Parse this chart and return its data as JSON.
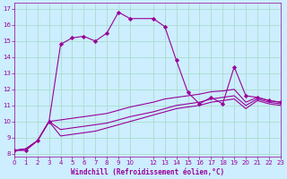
{
  "xlabel": "Windchill (Refroidissement éolien,°C)",
  "bg_color": "#cceeff",
  "line_color": "#990099",
  "grid_color": "#aaddcc",
  "x_ticks": [
    0,
    1,
    2,
    3,
    4,
    5,
    6,
    7,
    8,
    9,
    10,
    12,
    13,
    14,
    15,
    16,
    17,
    18,
    19,
    20,
    21,
    22,
    23
  ],
  "y_ticks": [
    8,
    9,
    10,
    11,
    12,
    13,
    14,
    15,
    16,
    17
  ],
  "xlim": [
    0,
    23
  ],
  "ylim": [
    7.8,
    17.4
  ],
  "series1_x": [
    0,
    1,
    2,
    3,
    4,
    5,
    6,
    7,
    8,
    9,
    10,
    12,
    13,
    14,
    15,
    16,
    17,
    18,
    19,
    20,
    21,
    22,
    23
  ],
  "series1_y": [
    8.2,
    8.2,
    8.8,
    10.0,
    14.8,
    15.2,
    15.3,
    15.0,
    15.5,
    16.8,
    16.4,
    16.4,
    15.9,
    13.8,
    11.8,
    11.1,
    11.5,
    11.1,
    13.4,
    11.6,
    11.5,
    11.3,
    11.2
  ],
  "series2_x": [
    0,
    1,
    2,
    3,
    4,
    5,
    6,
    7,
    8,
    9,
    10,
    12,
    13,
    14,
    15,
    16,
    17,
    18,
    19,
    20,
    21,
    22,
    23
  ],
  "series2_y": [
    8.2,
    8.3,
    8.8,
    10.0,
    10.1,
    10.2,
    10.3,
    10.4,
    10.5,
    10.7,
    10.9,
    11.2,
    11.4,
    11.5,
    11.6,
    11.7,
    11.85,
    11.9,
    12.0,
    11.2,
    11.5,
    11.3,
    11.2
  ],
  "series3_x": [
    0,
    1,
    2,
    3,
    4,
    5,
    6,
    7,
    8,
    9,
    10,
    12,
    13,
    14,
    15,
    16,
    17,
    18,
    19,
    20,
    21,
    22,
    23
  ],
  "series3_y": [
    8.2,
    8.3,
    8.8,
    10.0,
    9.5,
    9.6,
    9.7,
    9.8,
    9.9,
    10.1,
    10.3,
    10.6,
    10.8,
    11.0,
    11.1,
    11.2,
    11.4,
    11.5,
    11.6,
    11.0,
    11.4,
    11.2,
    11.1
  ],
  "series4_x": [
    0,
    1,
    2,
    3,
    4,
    5,
    6,
    7,
    8,
    9,
    10,
    12,
    13,
    14,
    15,
    16,
    17,
    18,
    19,
    20,
    21,
    22,
    23
  ],
  "series4_y": [
    8.2,
    8.3,
    8.8,
    10.0,
    9.1,
    9.2,
    9.3,
    9.4,
    9.6,
    9.8,
    10.0,
    10.4,
    10.6,
    10.8,
    10.9,
    11.0,
    11.2,
    11.3,
    11.4,
    10.8,
    11.3,
    11.1,
    11.0
  ]
}
